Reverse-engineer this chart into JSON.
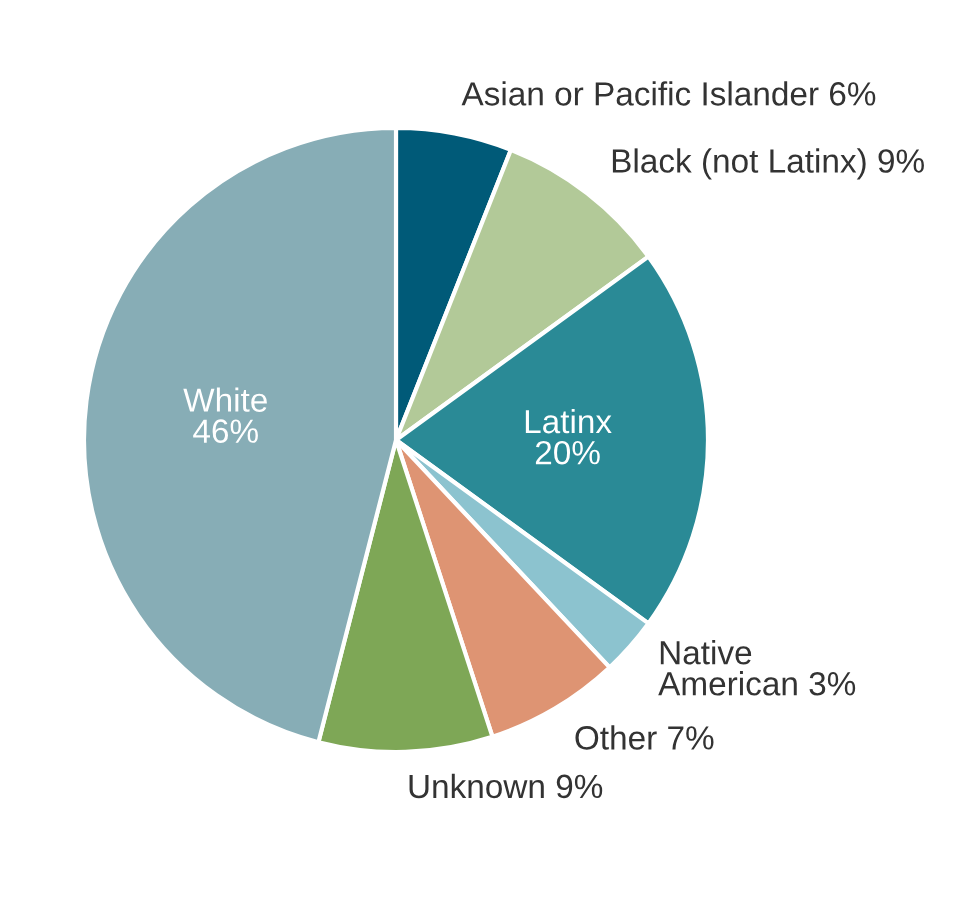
{
  "chart_data": {
    "type": "pie",
    "categories": [
      "Asian or Pacific Islander",
      "Black (not Latinx)",
      "Latinx",
      "Native\nAmerican",
      "Other",
      "Unknown",
      "White"
    ],
    "values": [
      6,
      9,
      20,
      3,
      7,
      9,
      46
    ],
    "value_labels": [
      "6%",
      "9%",
      "20%",
      "3%",
      "7%",
      "9%",
      "46%"
    ],
    "colors": [
      "#005a78",
      "#b2c998",
      "#2a8a96",
      "#8cc3cf",
      "#de9473",
      "#7ea756",
      "#87adb6"
    ]
  }
}
